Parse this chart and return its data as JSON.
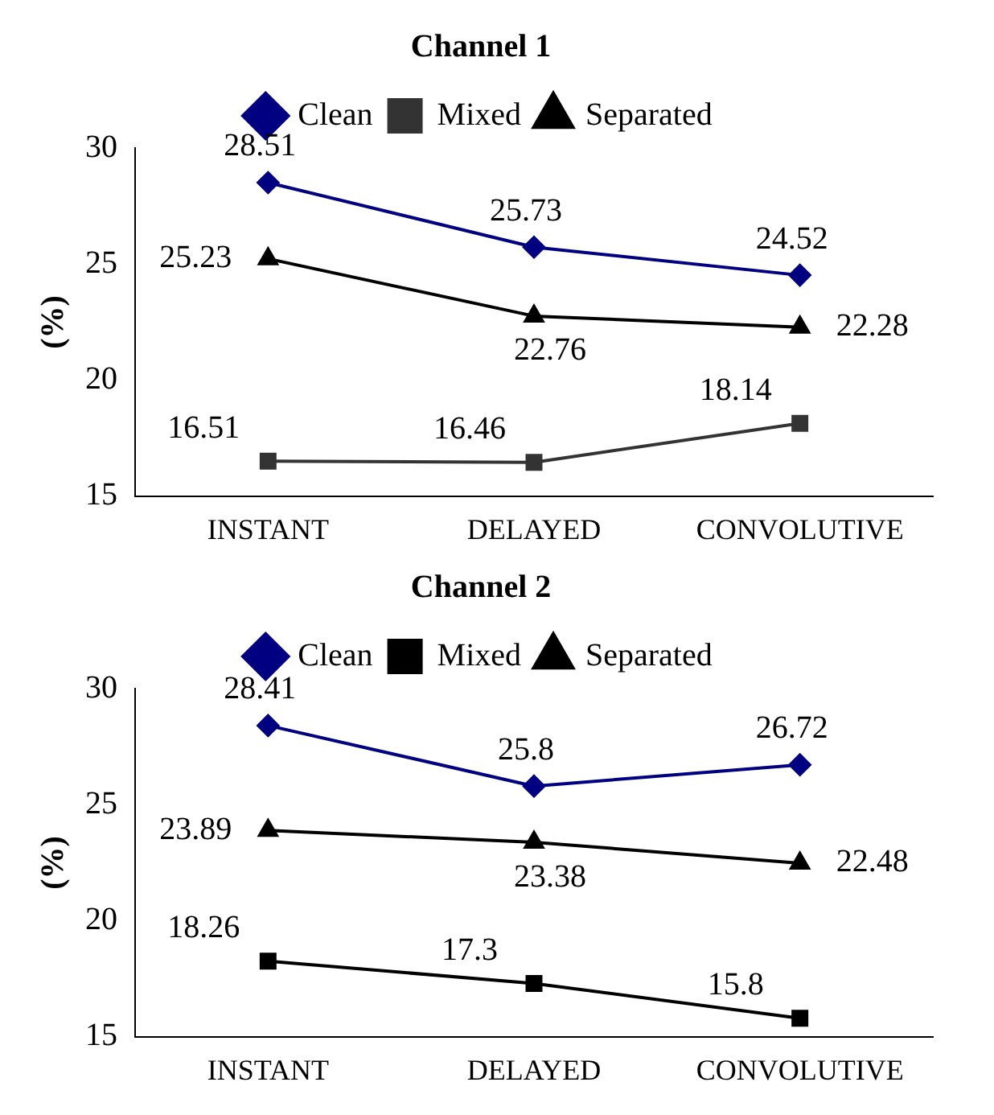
{
  "chart_data": [
    {
      "type": "line",
      "title": "Channel 1",
      "ylabel": "(%)",
      "categories": [
        "INSTANT",
        "DELAYED",
        "CONVOLUTIVE"
      ],
      "ylim": [
        15,
        30
      ],
      "yticks": [
        15,
        20,
        25,
        30
      ],
      "grid": false,
      "legend": "top",
      "data_labels": true,
      "series": [
        {
          "name": "Clean",
          "color": "#000080",
          "marker": "diamond",
          "values": [
            28.51,
            25.73,
            24.52
          ]
        },
        {
          "name": "Mixed",
          "color": "#333333",
          "marker": "square",
          "values": [
            16.51,
            16.46,
            18.14
          ]
        },
        {
          "name": "Separated",
          "color": "#000000",
          "marker": "triangle",
          "values": [
            25.23,
            22.76,
            22.28
          ]
        }
      ]
    },
    {
      "type": "line",
      "title": "Channel 2",
      "ylabel": "(%)",
      "categories": [
        "INSTANT",
        "DELAYED",
        "CONVOLUTIVE"
      ],
      "ylim": [
        15,
        30
      ],
      "yticks": [
        15,
        20,
        25,
        30
      ],
      "grid": false,
      "legend": "top",
      "data_labels": true,
      "series": [
        {
          "name": "Clean",
          "color": "#000080",
          "marker": "diamond",
          "values": [
            28.41,
            25.8,
            26.72
          ]
        },
        {
          "name": "Mixed",
          "color": "#000000",
          "marker": "square",
          "values": [
            18.26,
            17.3,
            15.8
          ]
        },
        {
          "name": "Separated",
          "color": "#000000",
          "marker": "triangle",
          "values": [
            23.89,
            23.38,
            22.48
          ]
        }
      ]
    }
  ]
}
